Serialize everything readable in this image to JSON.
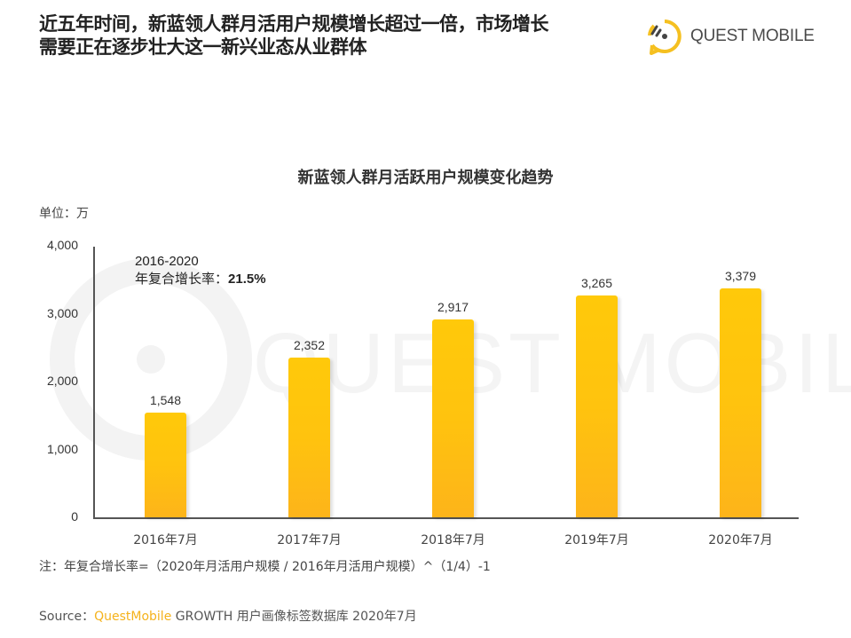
{
  "headline": {
    "line1": "近五年时间，新蓝领人群月活用户规模增长超过一倍，市场增长",
    "line2": "需要正在逐步壮大这一新兴业态从业群体"
  },
  "logo": {
    "text": "QUEST MOBILE",
    "icon": "questmobile-logo-icon",
    "color": "#f5c020"
  },
  "watermark": {
    "text": "QUEST MOBILE"
  },
  "unit_label": "单位：万",
  "annotation": {
    "period": "2016-2020",
    "label": "年复合增长率：",
    "value": "21.5%"
  },
  "note": "注：年复合增长率=（2020年月活用户规模 / 2016年月活用户规模）^（1/4）-1",
  "source": {
    "prefix": "Source：",
    "brand": "QuestMobile",
    "rest": " GROWTH 用户画像标签数据库 2020年7月"
  },
  "colors": {
    "bar_top": "#ffc90a",
    "bar_bottom": "#fdb41a",
    "brand": "#f5b21b",
    "axis": "#555555"
  },
  "chart_data": {
    "type": "bar",
    "title": "新蓝领人群月活跃用户规模变化趋势",
    "xlabel": "",
    "ylabel": "单位：万",
    "categories": [
      "2016年7月",
      "2017年7月",
      "2018年7月",
      "2019年7月",
      "2020年7月"
    ],
    "values": [
      1548,
      2352,
      2917,
      3265,
      3379
    ],
    "value_labels": [
      "1,548",
      "2,352",
      "2,917",
      "3,265",
      "3,379"
    ],
    "ylim": [
      0,
      4000
    ],
    "yticks": [
      "0",
      "1,000",
      "2,000",
      "3,000",
      "4,000"
    ],
    "grid": false,
    "legend": null,
    "annotations": [
      "2016-2020 年复合增长率：21.5%"
    ]
  }
}
